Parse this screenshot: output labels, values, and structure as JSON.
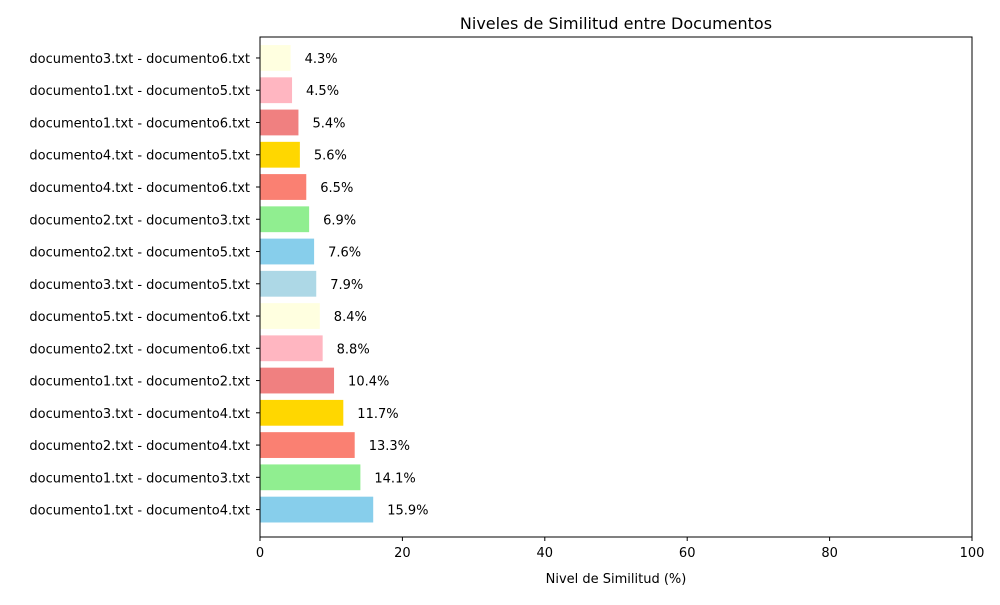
{
  "chart_data": {
    "type": "bar",
    "orientation": "horizontal",
    "title": "Niveles de Similitud entre Documentos",
    "xlabel": "Nivel de Similitud (%)",
    "ylabel": "",
    "xlim": [
      0,
      100
    ],
    "x_ticks": [
      0,
      20,
      40,
      60,
      80,
      100
    ],
    "grid": false,
    "value_suffix": "%",
    "categories": [
      "documento1.txt - documento4.txt",
      "documento1.txt - documento3.txt",
      "documento2.txt - documento4.txt",
      "documento3.txt - documento4.txt",
      "documento1.txt - documento2.txt",
      "documento2.txt - documento6.txt",
      "documento5.txt - documento6.txt",
      "documento3.txt - documento5.txt",
      "documento2.txt - documento5.txt",
      "documento2.txt - documento3.txt",
      "documento4.txt - documento6.txt",
      "documento4.txt - documento5.txt",
      "documento1.txt - documento6.txt",
      "documento1.txt - documento5.txt",
      "documento3.txt - documento6.txt"
    ],
    "values": [
      15.9,
      14.1,
      13.3,
      11.7,
      10.4,
      8.8,
      8.4,
      7.9,
      7.6,
      6.9,
      6.5,
      5.6,
      5.4,
      4.5,
      4.3
    ],
    "colors": [
      "#87CEEB",
      "#90EE90",
      "#FA8072",
      "#FFD700",
      "#F08080",
      "#FFB6C1",
      "#FFFFE0",
      "#ADD8E6",
      "#87CEEB",
      "#90EE90",
      "#FA8072",
      "#FFD700",
      "#F08080",
      "#FFB6C1",
      "#FFFFE0"
    ]
  }
}
